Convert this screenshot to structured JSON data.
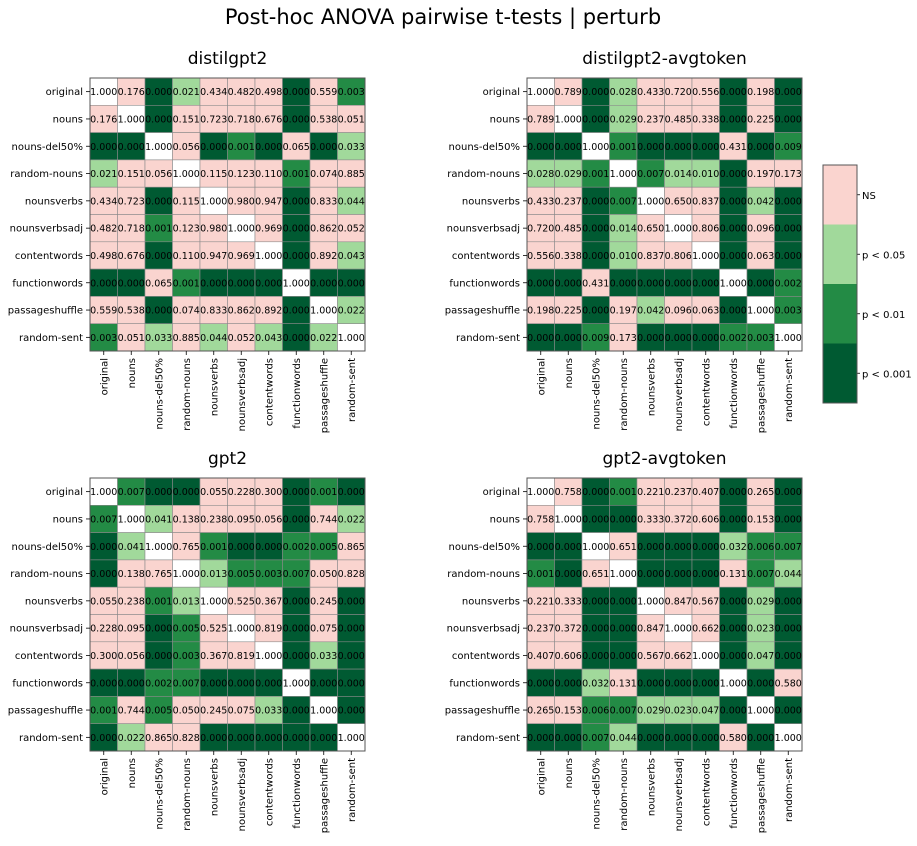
{
  "title": "Post-hoc ANOVA pairwise t-tests | perturb",
  "chart_data": {
    "type": "heatmap",
    "title": "Post-hoc ANOVA pairwise t-tests | perturb",
    "labels": [
      "original",
      "nouns",
      "nouns-del50%",
      "random-nouns",
      "nounsverbs",
      "nounsverbsadj",
      "contentwords",
      "functionwords",
      "passageshuffle",
      "random-sent"
    ],
    "legend": {
      "position": "right",
      "entries": [
        {
          "label": "NS",
          "color": "#fad4cf"
        },
        {
          "label": "p < 0.05",
          "color": "#a1d99b"
        },
        {
          "label": "p < 0.01",
          "color": "#238b45"
        },
        {
          "label": "p < 0.001",
          "color": "#005a32"
        }
      ]
    },
    "diagonal_color": "#ffffff",
    "panels": [
      {
        "title": "distilgpt2",
        "matrix": [
          [
            "1.000",
            "0.176",
            "0.000",
            "0.021",
            "0.434",
            "0.482",
            "0.498",
            "0.000",
            "0.559",
            "0.003"
          ],
          [
            "0.176",
            "1.000",
            "0.000",
            "0.151",
            "0.723",
            "0.718",
            "0.676",
            "0.000",
            "0.538",
            "0.051"
          ],
          [
            "0.000",
            "0.000",
            "1.000",
            "0.056",
            "0.000",
            "0.001",
            "0.000",
            "0.065",
            "0.000",
            "0.033"
          ],
          [
            "0.021",
            "0.151",
            "0.056",
            "1.000",
            "0.115",
            "0.123",
            "0.110",
            "0.001",
            "0.074",
            "0.885"
          ],
          [
            "0.434",
            "0.723",
            "0.000",
            "0.115",
            "1.000",
            "0.980",
            "0.947",
            "0.000",
            "0.833",
            "0.044"
          ],
          [
            "0.482",
            "0.718",
            "0.001",
            "0.123",
            "0.980",
            "1.000",
            "0.969",
            "0.000",
            "0.862",
            "0.052"
          ],
          [
            "0.498",
            "0.676",
            "0.000",
            "0.110",
            "0.947",
            "0.969",
            "1.000",
            "0.000",
            "0.892",
            "0.043"
          ],
          [
            "0.000",
            "0.000",
            "0.065",
            "0.001",
            "0.000",
            "0.000",
            "0.000",
            "1.000",
            "0.000",
            "0.000"
          ],
          [
            "0.559",
            "0.538",
            "0.000",
            "0.074",
            "0.833",
            "0.862",
            "0.892",
            "0.000",
            "1.000",
            "0.022"
          ],
          [
            "0.003",
            "0.051",
            "0.033",
            "0.885",
            "0.044",
            "0.052",
            "0.043",
            "0.000",
            "0.022",
            "1.000"
          ]
        ]
      },
      {
        "title": "distilgpt2-avgtoken",
        "matrix": [
          [
            "1.000",
            "0.789",
            "0.000",
            "0.028",
            "0.433",
            "0.720",
            "0.556",
            "0.000",
            "0.198",
            "0.000"
          ],
          [
            "0.789",
            "1.000",
            "0.000",
            "0.029",
            "0.237",
            "0.485",
            "0.338",
            "0.000",
            "0.225",
            "0.000"
          ],
          [
            "0.000",
            "0.000",
            "1.000",
            "0.001",
            "0.000",
            "0.000",
            "0.000",
            "0.431",
            "0.000",
            "0.009"
          ],
          [
            "0.028",
            "0.029",
            "0.001",
            "1.000",
            "0.007",
            "0.014",
            "0.010",
            "0.000",
            "0.197",
            "0.173"
          ],
          [
            "0.433",
            "0.237",
            "0.000",
            "0.007",
            "1.000",
            "0.650",
            "0.837",
            "0.000",
            "0.042",
            "0.000"
          ],
          [
            "0.720",
            "0.485",
            "0.000",
            "0.014",
            "0.650",
            "1.000",
            "0.806",
            "0.000",
            "0.096",
            "0.000"
          ],
          [
            "0.556",
            "0.338",
            "0.000",
            "0.010",
            "0.837",
            "0.806",
            "1.000",
            "0.000",
            "0.063",
            "0.000"
          ],
          [
            "0.000",
            "0.000",
            "0.431",
            "0.000",
            "0.000",
            "0.000",
            "0.000",
            "1.000",
            "0.000",
            "0.002"
          ],
          [
            "0.198",
            "0.225",
            "0.000",
            "0.197",
            "0.042",
            "0.096",
            "0.063",
            "0.000",
            "1.000",
            "0.003"
          ],
          [
            "0.000",
            "0.000",
            "0.009",
            "0.173",
            "0.000",
            "0.000",
            "0.000",
            "0.002",
            "0.003",
            "1.000"
          ]
        ]
      },
      {
        "title": "gpt2",
        "matrix": [
          [
            "1.000",
            "0.007",
            "0.000",
            "0.000",
            "0.055",
            "0.228",
            "0.300",
            "0.000",
            "0.001",
            "0.000"
          ],
          [
            "0.007",
            "1.000",
            "0.041",
            "0.138",
            "0.238",
            "0.095",
            "0.056",
            "0.000",
            "0.744",
            "0.022"
          ],
          [
            "0.000",
            "0.041",
            "1.000",
            "0.765",
            "0.001",
            "0.000",
            "0.000",
            "0.002",
            "0.005",
            "0.865"
          ],
          [
            "0.000",
            "0.138",
            "0.765",
            "1.000",
            "0.013",
            "0.005",
            "0.003",
            "0.007",
            "0.050",
            "0.828"
          ],
          [
            "0.055",
            "0.238",
            "0.001",
            "0.013",
            "1.000",
            "0.525",
            "0.367",
            "0.000",
            "0.245",
            "0.000"
          ],
          [
            "0.228",
            "0.095",
            "0.000",
            "0.005",
            "0.525",
            "1.000",
            "0.819",
            "0.000",
            "0.075",
            "0.000"
          ],
          [
            "0.300",
            "0.056",
            "0.000",
            "0.003",
            "0.367",
            "0.819",
            "1.000",
            "0.000",
            "0.033",
            "0.000"
          ],
          [
            "0.000",
            "0.000",
            "0.002",
            "0.007",
            "0.000",
            "0.000",
            "0.000",
            "1.000",
            "0.000",
            "0.000"
          ],
          [
            "0.001",
            "0.744",
            "0.005",
            "0.050",
            "0.245",
            "0.075",
            "0.033",
            "0.000",
            "1.000",
            "0.000"
          ],
          [
            "0.000",
            "0.022",
            "0.865",
            "0.828",
            "0.000",
            "0.000",
            "0.000",
            "0.000",
            "0.000",
            "1.000"
          ]
        ]
      },
      {
        "title": "gpt2-avgtoken",
        "matrix": [
          [
            "1.000",
            "0.758",
            "0.000",
            "0.001",
            "0.221",
            "0.237",
            "0.407",
            "0.000",
            "0.265",
            "0.000"
          ],
          [
            "0.758",
            "1.000",
            "0.000",
            "0.000",
            "0.333",
            "0.372",
            "0.606",
            "0.000",
            "0.153",
            "0.000"
          ],
          [
            "0.000",
            "0.000",
            "1.000",
            "0.651",
            "0.000",
            "0.000",
            "0.000",
            "0.032",
            "0.006",
            "0.007"
          ],
          [
            "0.001",
            "0.000",
            "0.651",
            "1.000",
            "0.000",
            "0.000",
            "0.000",
            "0.131",
            "0.007",
            "0.044"
          ],
          [
            "0.221",
            "0.333",
            "0.000",
            "0.000",
            "1.000",
            "0.847",
            "0.567",
            "0.000",
            "0.029",
            "0.000"
          ],
          [
            "0.237",
            "0.372",
            "0.000",
            "0.000",
            "0.847",
            "1.000",
            "0.662",
            "0.000",
            "0.023",
            "0.000"
          ],
          [
            "0.407",
            "0.606",
            "0.000",
            "0.000",
            "0.567",
            "0.662",
            "1.000",
            "0.000",
            "0.047",
            "0.000"
          ],
          [
            "0.000",
            "0.000",
            "0.032",
            "0.131",
            "0.000",
            "0.000",
            "0.000",
            "1.000",
            "0.000",
            "0.580"
          ],
          [
            "0.265",
            "0.153",
            "0.006",
            "0.007",
            "0.029",
            "0.023",
            "0.047",
            "0.000",
            "1.000",
            "0.000"
          ],
          [
            "0.000",
            "0.000",
            "0.007",
            "0.044",
            "0.000",
            "0.000",
            "0.000",
            "0.580",
            "0.000",
            "1.000"
          ]
        ]
      }
    ]
  }
}
